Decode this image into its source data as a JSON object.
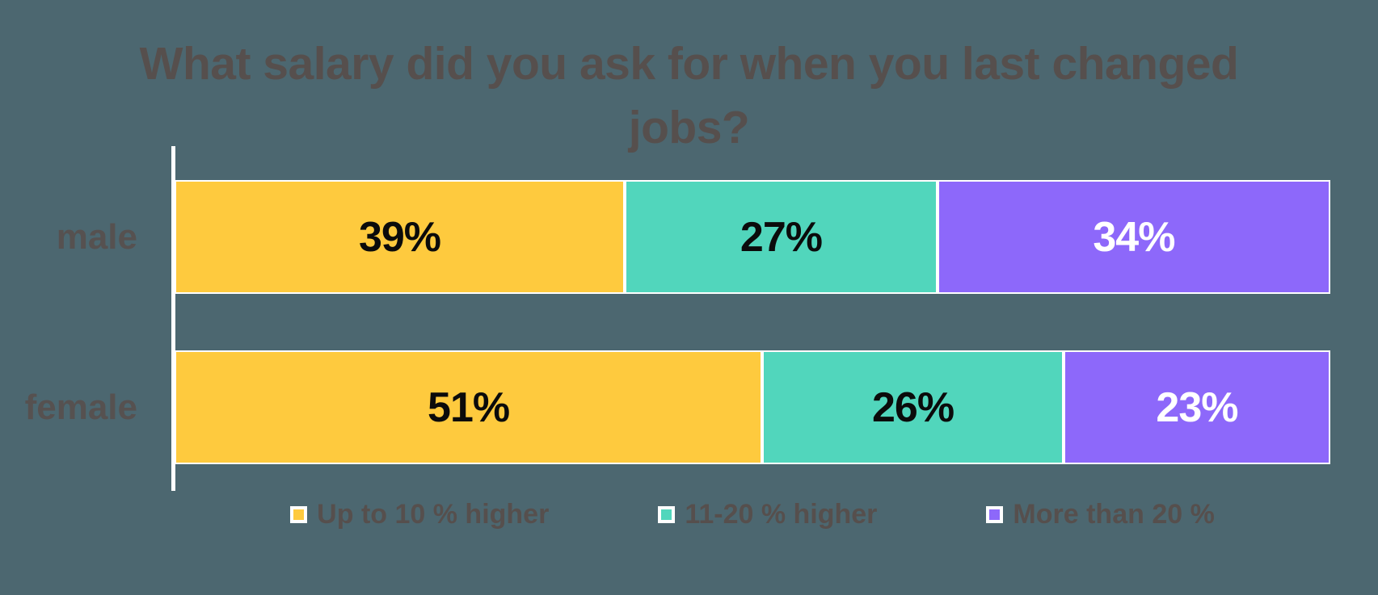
{
  "colors": {
    "background": "#4C6770",
    "title_text": "#564F4D",
    "category_text": "#565150",
    "legend_text": "#564F4D",
    "axis_line": "#FFFFFF",
    "segment_border": "#FFFFFF"
  },
  "chart_data": {
    "type": "bar",
    "variant": "stacked-100-horizontal",
    "title": "What salary did you ask for when you last changed\njobs?",
    "categories": [
      "male",
      "female"
    ],
    "series": [
      {
        "name": "Up to 10 % higher",
        "color": "#FECA3E",
        "value_label_color": "#0B0B0B",
        "values": [
          39,
          51
        ]
      },
      {
        "name": "11-20 % higher",
        "color": "#51D6BC",
        "value_label_color": "#0B0B0B",
        "values": [
          27,
          26
        ]
      },
      {
        "name": "More than 20 %",
        "color": "#8D68FA",
        "value_label_color": "#FFFFFF",
        "values": [
          34,
          23
        ]
      }
    ],
    "value_suffix": "%",
    "xlim": [
      0,
      100
    ],
    "grid": false,
    "legend_position": "bottom",
    "axis": "left-baseline-only"
  }
}
